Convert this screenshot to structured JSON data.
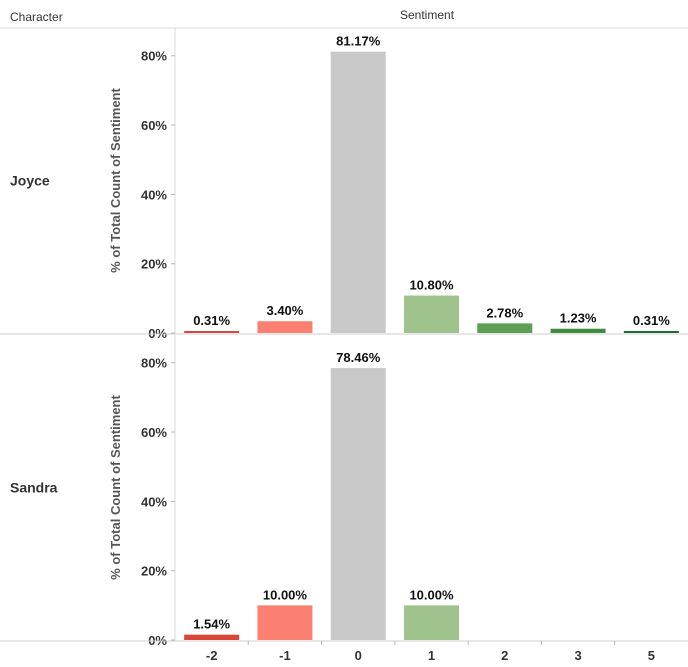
{
  "headers": {
    "row_header": "Character",
    "column_header": "Sentiment"
  },
  "chart_data": {
    "type": "bar",
    "categories": [
      "-2",
      "-1",
      "0",
      "1",
      "2",
      "3",
      "5"
    ],
    "ylabel": "% of Total Count of Sentiment",
    "ylim": [
      0,
      0.88
    ],
    "yticks": [
      {
        "value": 0,
        "label": "0%"
      },
      {
        "value": 0.2,
        "label": "20%"
      },
      {
        "value": 0.4,
        "label": "40%"
      },
      {
        "value": 0.6,
        "label": "60%"
      },
      {
        "value": 0.8,
        "label": "80%"
      }
    ],
    "colors": {
      "-2": "#d9473b",
      "-1": "#fb8072",
      "0": "#c8c8c8",
      "1": "#9fc38c",
      "2": "#5e9e52",
      "3": "#3f8b3f",
      "5": "#1f6a2e"
    },
    "panels": [
      {
        "name": "Joyce",
        "values": [
          0.0031,
          0.034,
          0.8117,
          0.108,
          0.0278,
          0.0123,
          0.0031
        ],
        "labels": [
          "0.31%",
          "3.40%",
          "81.17%",
          "10.80%",
          "2.78%",
          "1.23%",
          "0.31%"
        ]
      },
      {
        "name": "Sandra",
        "values": [
          0.0154,
          0.1,
          0.7846,
          0.1,
          null,
          null,
          null
        ],
        "labels": [
          "1.54%",
          "10.00%",
          "78.46%",
          "10.00%",
          null,
          null,
          null
        ]
      }
    ]
  }
}
